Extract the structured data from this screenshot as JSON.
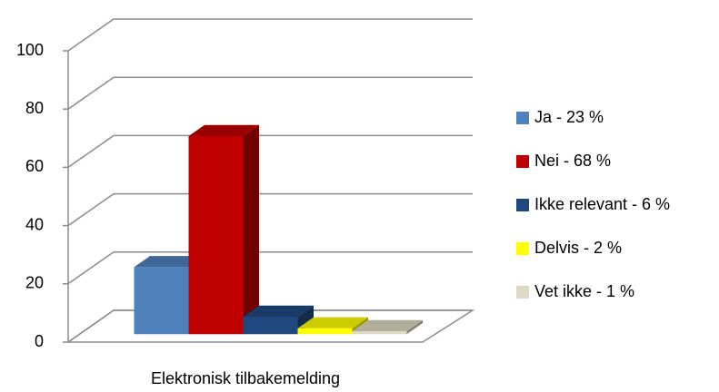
{
  "chart_data": {
    "type": "bar3d",
    "categories": [
      "Elektronisk tilbakemelding"
    ],
    "series": [
      {
        "name": "Ja - 23 %",
        "color": "#4f81bd",
        "values": [
          23
        ]
      },
      {
        "name": "Nei - 68 %",
        "color": "#c00000",
        "values": [
          68
        ]
      },
      {
        "name": "Ikke relevant - 6 %",
        "color": "#1f497d",
        "values": [
          6
        ]
      },
      {
        "name": "Delvis - 2 %",
        "color": "#ffff00",
        "values": [
          2
        ]
      },
      {
        "name": "Vet ikke - 1 %",
        "color": "#ddd9c3",
        "values": [
          1
        ]
      }
    ],
    "ylim": [
      0,
      100
    ],
    "yticks": [
      0,
      20,
      40,
      60,
      80,
      100
    ],
    "grid": true,
    "legend": "right"
  }
}
